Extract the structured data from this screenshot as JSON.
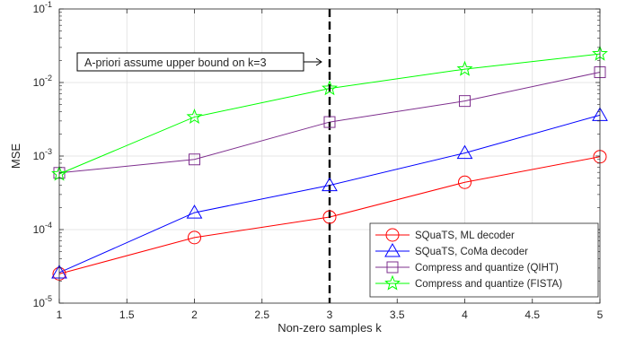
{
  "chart_data": {
    "type": "line",
    "title": "",
    "xlabel": "Non-zero samples k",
    "ylabel": "MSE",
    "xlim": [
      1,
      5
    ],
    "ylim": [
      1e-05,
      0.1
    ],
    "yscale": "log",
    "grid": true,
    "legend_position": "bottom-right",
    "x_ticks": [
      "1",
      "1.5",
      "2",
      "2.5",
      "3",
      "3.5",
      "4",
      "4.5",
      "5"
    ],
    "y_ticks": [
      {
        "base": "10",
        "exp": "-5"
      },
      {
        "base": "10",
        "exp": "-4"
      },
      {
        "base": "10",
        "exp": "-3"
      },
      {
        "base": "10",
        "exp": "-2"
      },
      {
        "base": "10",
        "exp": "-1"
      }
    ],
    "x": [
      1,
      2,
      3,
      4,
      5
    ],
    "series": [
      {
        "name": "SQuaTS, ML decoder",
        "color": "#ff0000",
        "marker": "circle",
        "values": [
          2.5e-05,
          7.8e-05,
          0.000148,
          0.00044,
          0.00098
        ]
      },
      {
        "name": "SQuaTS, CoMa decoder",
        "color": "#0000ff",
        "marker": "triangle",
        "values": [
          2.6e-05,
          0.00017,
          0.0004,
          0.0011,
          0.0036
        ]
      },
      {
        "name": "Compress and quantize (QIHT)",
        "color": "#7e2f8e",
        "marker": "square",
        "values": [
          0.00059,
          0.0009,
          0.0029,
          0.0056,
          0.0138
        ]
      },
      {
        "name": "Compress and quantize (FISTA)",
        "color": "#00ff00",
        "marker": "star",
        "values": [
          0.00057,
          0.0034,
          0.0083,
          0.0152,
          0.0245
        ]
      }
    ],
    "vline": {
      "x": 3,
      "color": "#000000",
      "style": "dashed"
    },
    "annotation": {
      "text": "A-priori assume upper bound on k=3",
      "arrow": "right"
    }
  }
}
